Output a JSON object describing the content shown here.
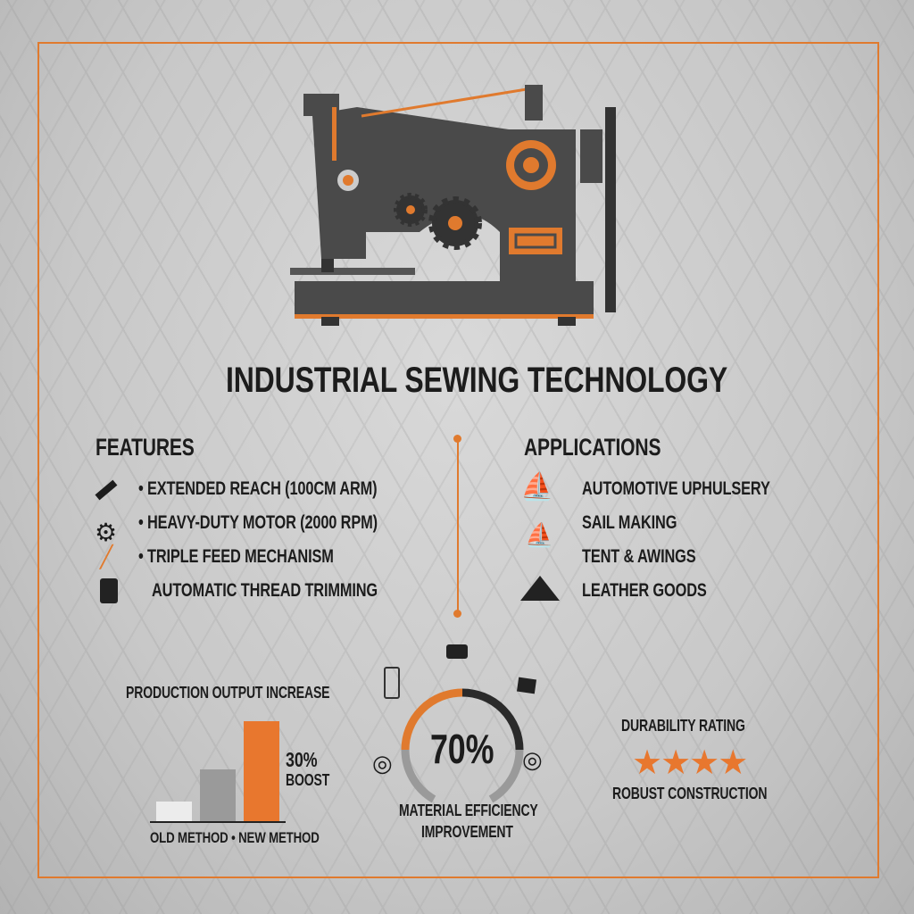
{
  "title": "INDUSTRIAL SEWING TECHNOLOGY",
  "features": {
    "heading": "FEATURES",
    "items": [
      {
        "label": "• EXTENDED REACH (100CM ARM)",
        "icon": "ruler-icon"
      },
      {
        "label": "• HEAVY-DUTY MOTOR (2000 RPM)",
        "icon": "gear-icon"
      },
      {
        "label": "• TRIPLE FEED MECHANISM",
        "icon": "needle-icon"
      },
      {
        "label": "AUTOMATIC THREAD TRIMMING",
        "icon": "thread-spool-icon"
      }
    ]
  },
  "applications": {
    "heading": "APPLICATIONS",
    "items": [
      {
        "label": "AUTOMOTIVE UPHULSERY",
        "icon": "sailboat-icon"
      },
      {
        "label": "SAIL MAKING",
        "icon": "sailboat-icon"
      },
      {
        "label": "TENT & AWINGS",
        "icon": ""
      },
      {
        "label": "LEATHER GOODS",
        "icon": "tent-icon"
      }
    ]
  },
  "colors": {
    "accent": "#e07a2e",
    "dark": "#4a4a4a",
    "gray": "#9a9a9a"
  },
  "chart_data": [
    {
      "type": "bar",
      "title": "PRODUCTION OUTPUT INCREASE",
      "categories": [
        "OLD METHOD",
        "",
        "NEW METHOD"
      ],
      "xlabel": "OLD METHOD • NEW METHOD",
      "values": [
        20,
        52,
        100
      ],
      "annotation": "30%",
      "annotation_sub": "BOOST",
      "colors": [
        "#ececec",
        "#9a9a9a",
        "#e8772e"
      ]
    },
    {
      "type": "gauge",
      "value": 70,
      "label": "70%",
      "caption_line1": "MATERIAL EFFICIENCY",
      "caption_line2": "IMPROVEMENT"
    },
    {
      "type": "rating",
      "title": "DURABILITY RATING",
      "value": 4,
      "max": 4,
      "caption": "ROBUST CONSTRUCTION"
    }
  ]
}
